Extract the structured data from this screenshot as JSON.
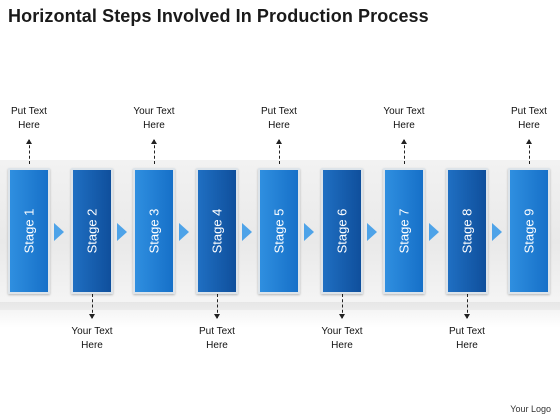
{
  "title": "Horizontal Steps Involved In Production Process",
  "stages": [
    {
      "label": "Stage 1",
      "callout": "Put Text Here",
      "position": "top",
      "shade": "light"
    },
    {
      "label": "Stage 2",
      "callout": "Your Text Here",
      "position": "bottom",
      "shade": "dark"
    },
    {
      "label": "Stage 3",
      "callout": "Your Text Here",
      "position": "top",
      "shade": "light"
    },
    {
      "label": "Stage 4",
      "callout": "Put Text Here",
      "position": "bottom",
      "shade": "dark"
    },
    {
      "label": "Stage 5",
      "callout": "Put Text Here",
      "position": "top",
      "shade": "light"
    },
    {
      "label": "Stage 6",
      "callout": "Your Text Here",
      "position": "bottom",
      "shade": "dark"
    },
    {
      "label": "Stage 7",
      "callout": "Your Text Here",
      "position": "top",
      "shade": "light"
    },
    {
      "label": "Stage 8",
      "callout": "Put Text Here",
      "position": "bottom",
      "shade": "dark"
    },
    {
      "label": "Stage 9",
      "callout": "Put Text Here",
      "position": "top",
      "shade": "light"
    }
  ],
  "logo": "Your Logo",
  "colors": {
    "stage_light": "#1670c8",
    "stage_dark": "#0f4f9c",
    "connector": "#4ea3e8"
  }
}
